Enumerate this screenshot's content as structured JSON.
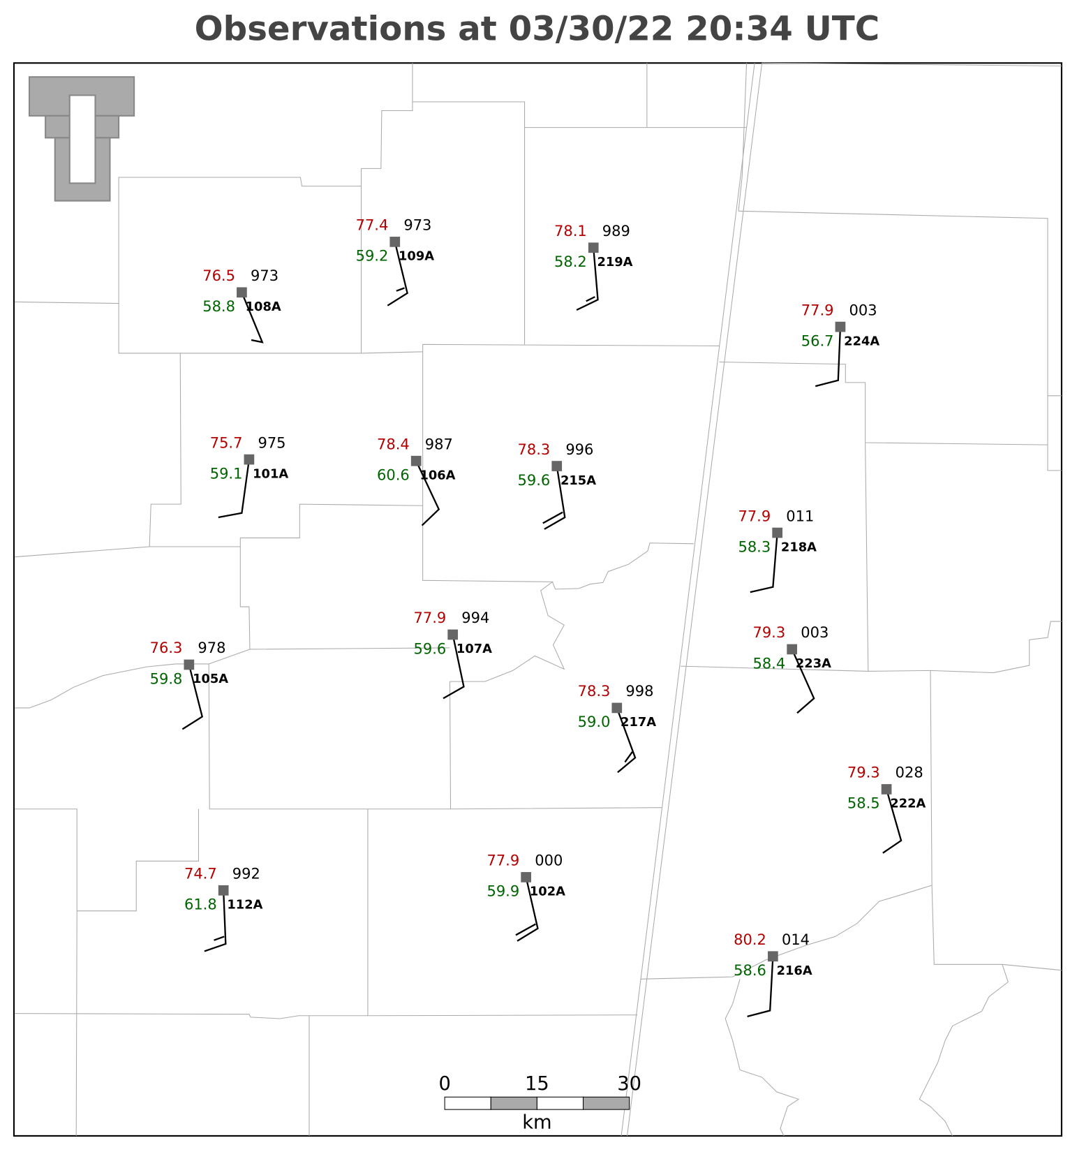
{
  "title": "Observations at 03/30/22 20:34 UTC",
  "stations": [
    {
      "id": "108A",
      "temperature": "76.5",
      "dewpoint": "58.8",
      "pressure": "973"
    },
    {
      "id": "109A",
      "temperature": "77.4",
      "dewpoint": "59.2",
      "pressure": "973"
    },
    {
      "id": "219A",
      "temperature": "78.1",
      "dewpoint": "58.2",
      "pressure": "989"
    },
    {
      "id": "224A",
      "temperature": "77.9",
      "dewpoint": "56.7",
      "pressure": "003"
    },
    {
      "id": "101A",
      "temperature": "75.7",
      "dewpoint": "59.1",
      "pressure": "975"
    },
    {
      "id": "106A",
      "temperature": "78.4",
      "dewpoint": "60.6",
      "pressure": "987"
    },
    {
      "id": "215A",
      "temperature": "78.3",
      "dewpoint": "59.6",
      "pressure": "996"
    },
    {
      "id": "218A",
      "temperature": "77.9",
      "dewpoint": "58.3",
      "pressure": "011"
    },
    {
      "id": "107A",
      "temperature": "77.9",
      "dewpoint": "59.6",
      "pressure": "994"
    },
    {
      "id": "105A",
      "temperature": "76.3",
      "dewpoint": "59.8",
      "pressure": "978"
    },
    {
      "id": "223A",
      "temperature": "79.3",
      "dewpoint": "58.4",
      "pressure": "003"
    },
    {
      "id": "217A",
      "temperature": "78.3",
      "dewpoint": "59.0",
      "pressure": "998"
    },
    {
      "id": "222A",
      "temperature": "79.3",
      "dewpoint": "58.5",
      "pressure": "028"
    },
    {
      "id": "112A",
      "temperature": "74.7",
      "dewpoint": "61.8",
      "pressure": "992"
    },
    {
      "id": "102A",
      "temperature": "77.9",
      "dewpoint": "59.9",
      "pressure": "000"
    },
    {
      "id": "216A",
      "temperature": "80.2",
      "dewpoint": "58.6",
      "pressure": "014"
    }
  ],
  "scale_bar": {
    "ticks": [
      0,
      15,
      30
    ],
    "unit": "km"
  }
}
